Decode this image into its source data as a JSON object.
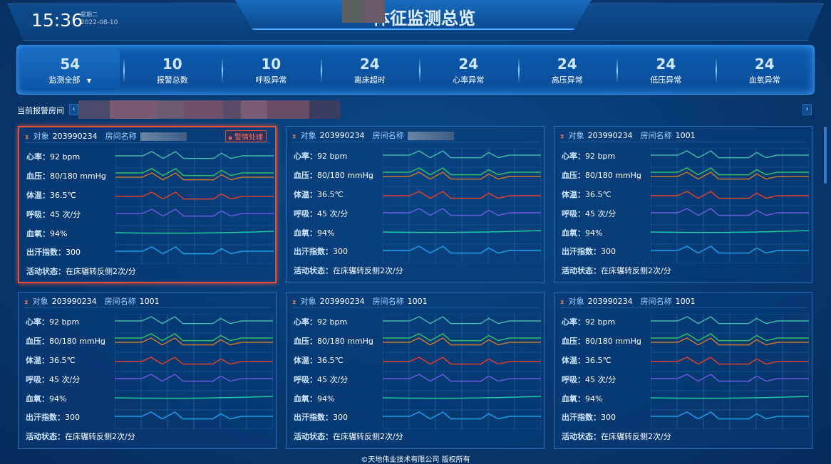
{
  "header": {
    "time": "15:36",
    "weekday": "星期二",
    "date": "2022-08-10",
    "title": "体征监测总览"
  },
  "stats": [
    {
      "value": "54",
      "label": "监测全部",
      "dropdown": true
    },
    {
      "value": "10",
      "label": "报警总数"
    },
    {
      "value": "10",
      "label": "呼吸异常"
    },
    {
      "value": "24",
      "label": "离床超时"
    },
    {
      "value": "24",
      "label": "心率异常"
    },
    {
      "value": "24",
      "label": "高压异常"
    },
    {
      "value": "24",
      "label": "低压异常"
    },
    {
      "value": "24",
      "label": "血氧异常"
    }
  ],
  "alarm_rooms": {
    "label": "当前报警房间",
    "prev": "‹",
    "next": "›"
  },
  "card_labels": {
    "object": "对象",
    "room": "房间名称",
    "heart": "心率：",
    "bp": "血压：",
    "temp": "体温：",
    "resp": "呼吸：",
    "spo2": "血氧：",
    "sweat": "出汗指数：",
    "activity": "活动状态：",
    "alert_button": "警情处理"
  },
  "cards": [
    {
      "object": "203990234",
      "room": "",
      "alert": true,
      "heart": "92 bpm",
      "bp": "80/180 mmHg",
      "temp": "36.5℃",
      "resp": "45 次/分",
      "spo2": "94%",
      "sweat": "300",
      "activity": "在床辗转反侧2次/分"
    },
    {
      "object": "203990234",
      "room": "",
      "alert": false,
      "heart": "92 bpm",
      "bp": "80/180 mmHg",
      "temp": "36.5℃",
      "resp": "45 次/分",
      "spo2": "94%",
      "sweat": "300",
      "activity": "在床辗转反侧2次/分"
    },
    {
      "object": "203990234",
      "room": "1001",
      "alert": false,
      "heart": "92 bpm",
      "bp": "80/180 mmHg",
      "temp": "36.5℃",
      "resp": "45 次/分",
      "spo2": "94%",
      "sweat": "300",
      "activity": "在床辗转反侧2次/分"
    },
    {
      "object": "203990234",
      "room": "1001",
      "alert": false,
      "heart": "92 bpm",
      "bp": "80/180 mmHg",
      "temp": "36.5℃",
      "resp": "45 次/分",
      "spo2": "94%",
      "sweat": "300",
      "activity": "在床辗转反侧2次/分"
    },
    {
      "object": "203990234",
      "room": "1001",
      "alert": false,
      "heart": "92 bpm",
      "bp": "80/180 mmHg",
      "temp": "36.5℃",
      "resp": "45 次/分",
      "spo2": "94%",
      "sweat": "300",
      "activity": "在床辗转反侧2次/分"
    },
    {
      "object": "203990234",
      "room": "1001",
      "alert": false,
      "heart": "92 bpm",
      "bp": "80/180 mmHg",
      "temp": "36.5℃",
      "resp": "45 次/分",
      "spo2": "94%",
      "sweat": "300",
      "activity": "在床辗转反侧2次/分"
    }
  ],
  "wave_colors": {
    "heart": "#3fb7a8",
    "bp_high": "#2fbf6a",
    "bp_low": "#c8782a",
    "temp": "#e0402a",
    "resp": "#6a5ae0",
    "spo2": "#1fc8a0",
    "sweat": "#1aa0e8"
  },
  "footer": "©天地伟业技术有限公司 版权所有"
}
